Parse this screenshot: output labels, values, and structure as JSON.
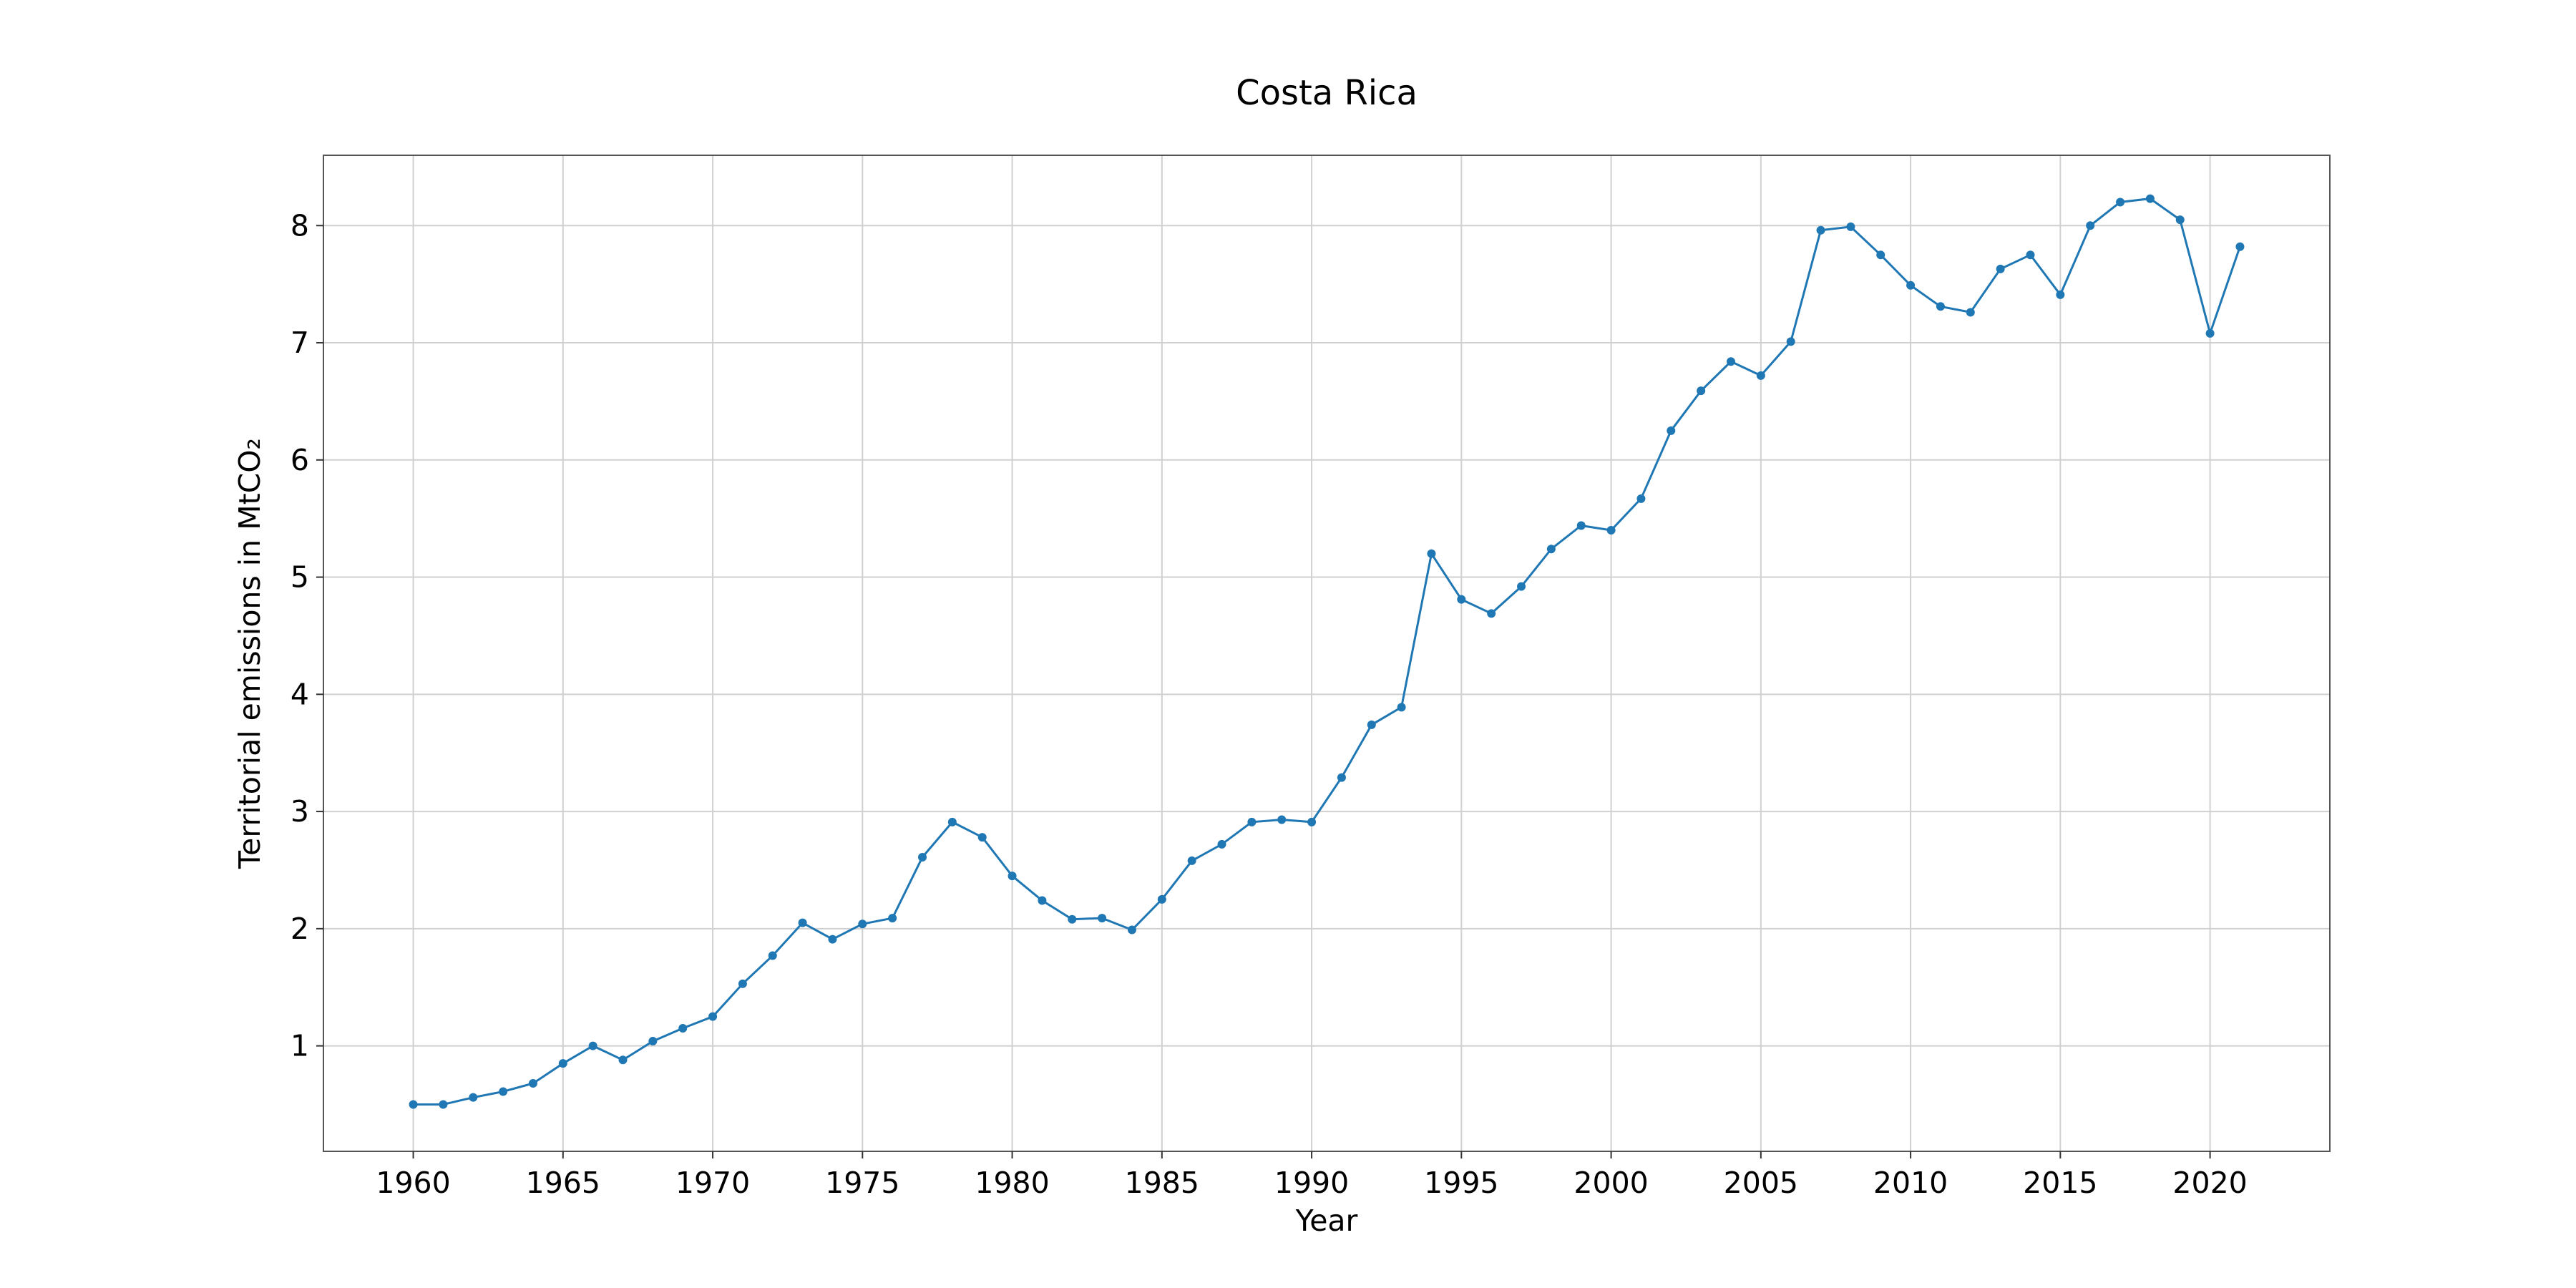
{
  "chart_data": {
    "type": "line",
    "title": "Costa Rica",
    "xlabel": "Year",
    "ylabel": "Territorial emissions in MtCO₂",
    "xlim": [
      1957,
      2024
    ],
    "ylim": [
      0.1,
      8.6
    ],
    "xticks": [
      1960,
      1965,
      1970,
      1975,
      1980,
      1985,
      1990,
      1995,
      2000,
      2005,
      2010,
      2015,
      2020
    ],
    "yticks": [
      1,
      2,
      3,
      4,
      5,
      6,
      7,
      8
    ],
    "grid": true,
    "series": [
      {
        "color": "#1f77b4",
        "x": [
          1960,
          1961,
          1962,
          1963,
          1964,
          1965,
          1966,
          1967,
          1968,
          1969,
          1970,
          1971,
          1972,
          1973,
          1974,
          1975,
          1976,
          1977,
          1978,
          1979,
          1980,
          1981,
          1982,
          1983,
          1984,
          1985,
          1986,
          1987,
          1988,
          1989,
          1990,
          1991,
          1992,
          1993,
          1994,
          1995,
          1996,
          1997,
          1998,
          1999,
          2000,
          2001,
          2002,
          2003,
          2004,
          2005,
          2006,
          2007,
          2008,
          2009,
          2010,
          2011,
          2012,
          2013,
          2014,
          2015,
          2016,
          2017,
          2018,
          2019,
          2020,
          2021
        ],
        "values": [
          0.5,
          0.5,
          0.56,
          0.61,
          0.68,
          0.85,
          1.0,
          0.88,
          1.04,
          1.15,
          1.25,
          1.53,
          1.77,
          2.05,
          1.91,
          2.04,
          2.09,
          2.61,
          2.91,
          2.78,
          2.45,
          2.24,
          2.08,
          2.09,
          1.99,
          2.25,
          2.58,
          2.72,
          2.91,
          2.93,
          2.91,
          3.29,
          3.74,
          3.89,
          5.2,
          4.81,
          4.69,
          4.92,
          5.24,
          5.44,
          5.4,
          5.67,
          6.25,
          6.59,
          6.84,
          6.72,
          7.01,
          7.96,
          7.99,
          7.75,
          7.49,
          7.31,
          7.26,
          7.63,
          7.75,
          7.41,
          8.0,
          8.2,
          8.23,
          8.05,
          7.08,
          7.82
        ]
      }
    ]
  }
}
